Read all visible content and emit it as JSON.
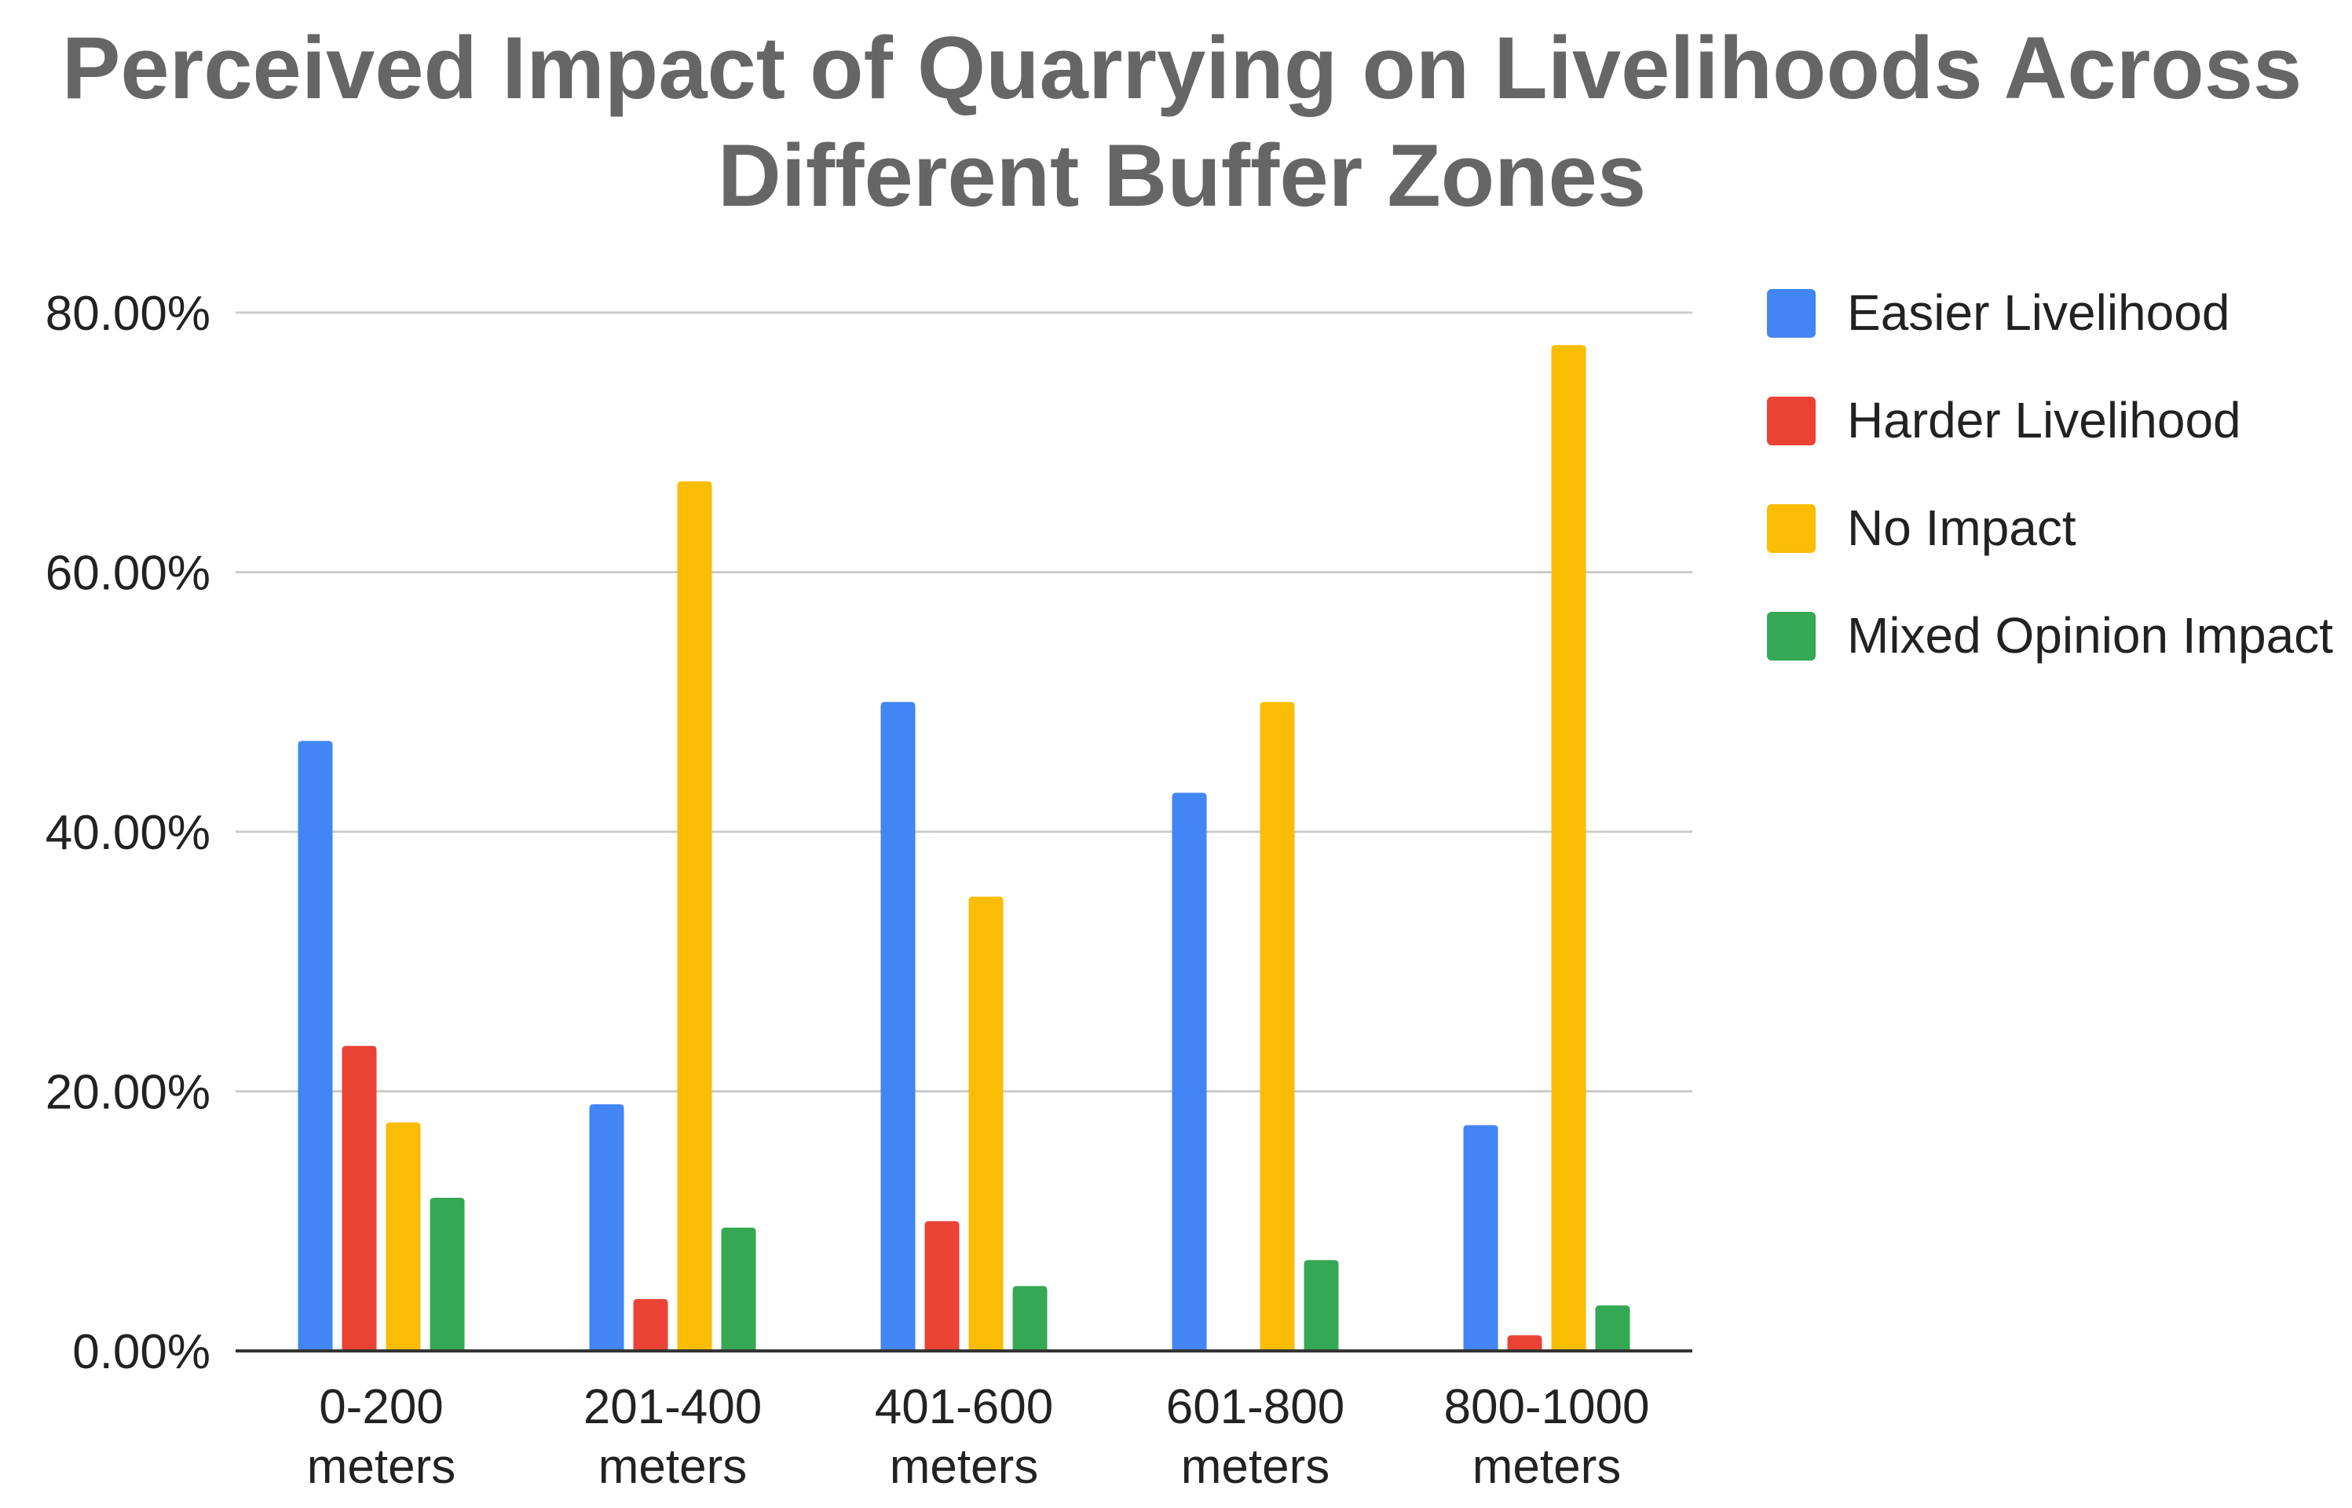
{
  "chart_data": {
    "type": "bar",
    "title": "Perceived Impact of Quarrying on Livelihoods Across Different Buffer Zones",
    "title_lines": [
      "Perceived Impact of Quarrying on Livelihoods Across",
      "Different Buffer Zones"
    ],
    "xlabel": "",
    "ylabel": "",
    "ylim": [
      0,
      80
    ],
    "yticks": [
      0,
      20,
      40,
      60,
      80
    ],
    "ytick_labels": [
      "0.00%",
      "20.00%",
      "40.00%",
      "60.00%",
      "80.00%"
    ],
    "grid": true,
    "legend_position": "right",
    "categories": [
      [
        "0-200",
        "meters"
      ],
      [
        "201-400",
        "meters"
      ],
      [
        "401-600",
        "meters"
      ],
      [
        "601-800",
        "meters"
      ],
      [
        "800-1000",
        "meters"
      ]
    ],
    "series": [
      {
        "name": "Easier Livelihood",
        "color": "#4285F4",
        "values": [
          47.0,
          19.0,
          50.0,
          43.0,
          17.4
        ]
      },
      {
        "name": "Harder Livelihood",
        "color": "#EA4335",
        "values": [
          23.5,
          4.0,
          10.0,
          0,
          1.2
        ]
      },
      {
        "name": "No Impact",
        "color": "#FBBC04",
        "values": [
          17.6,
          67.0,
          35.0,
          50.0,
          77.5
        ]
      },
      {
        "name": "Mixed Opinion Impact",
        "color": "#34A853",
        "values": [
          11.8,
          9.5,
          5.0,
          7.0,
          3.5
        ]
      }
    ]
  }
}
